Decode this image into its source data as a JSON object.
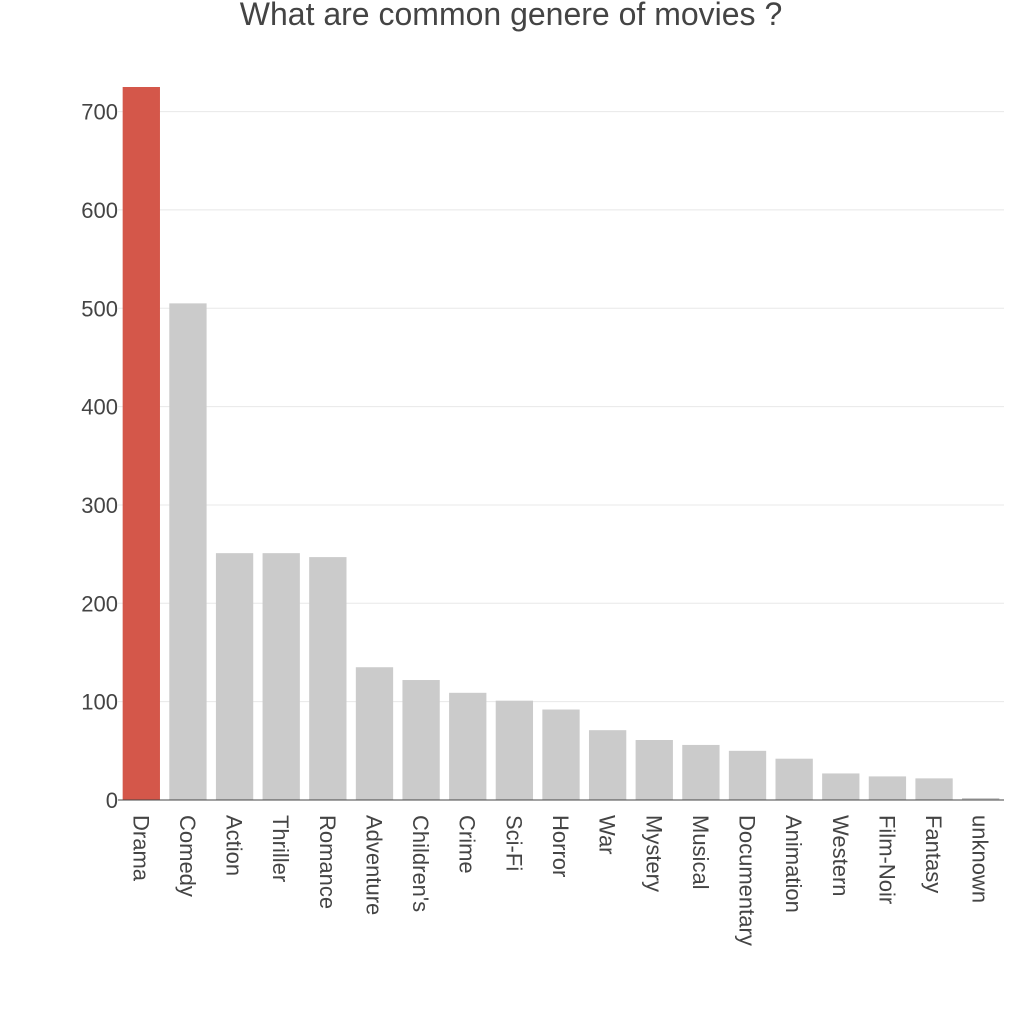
{
  "chart_data": {
    "type": "bar",
    "title": "What are common genere of movies ?",
    "xlabel": "",
    "ylabel": "",
    "categories": [
      "Drama",
      "Comedy",
      "Action",
      "Thriller",
      "Romance",
      "Adventure",
      "Children's",
      "Crime",
      "Sci-Fi",
      "Horror",
      "War",
      "Mystery",
      "Musical",
      "Documentary",
      "Animation",
      "Western",
      "Film-Noir",
      "Fantasy",
      "unknown"
    ],
    "values": [
      725,
      505,
      251,
      251,
      247,
      135,
      122,
      109,
      101,
      92,
      71,
      61,
      56,
      50,
      42,
      27,
      24,
      22,
      2
    ],
    "ylim": [
      0,
      725
    ],
    "yticks": [
      0,
      100,
      200,
      300,
      400,
      500,
      600,
      700
    ],
    "grid": true,
    "colors": {
      "highlight": "#d4574a",
      "bar": "#cbcbcb"
    },
    "highlight_index": 0
  }
}
